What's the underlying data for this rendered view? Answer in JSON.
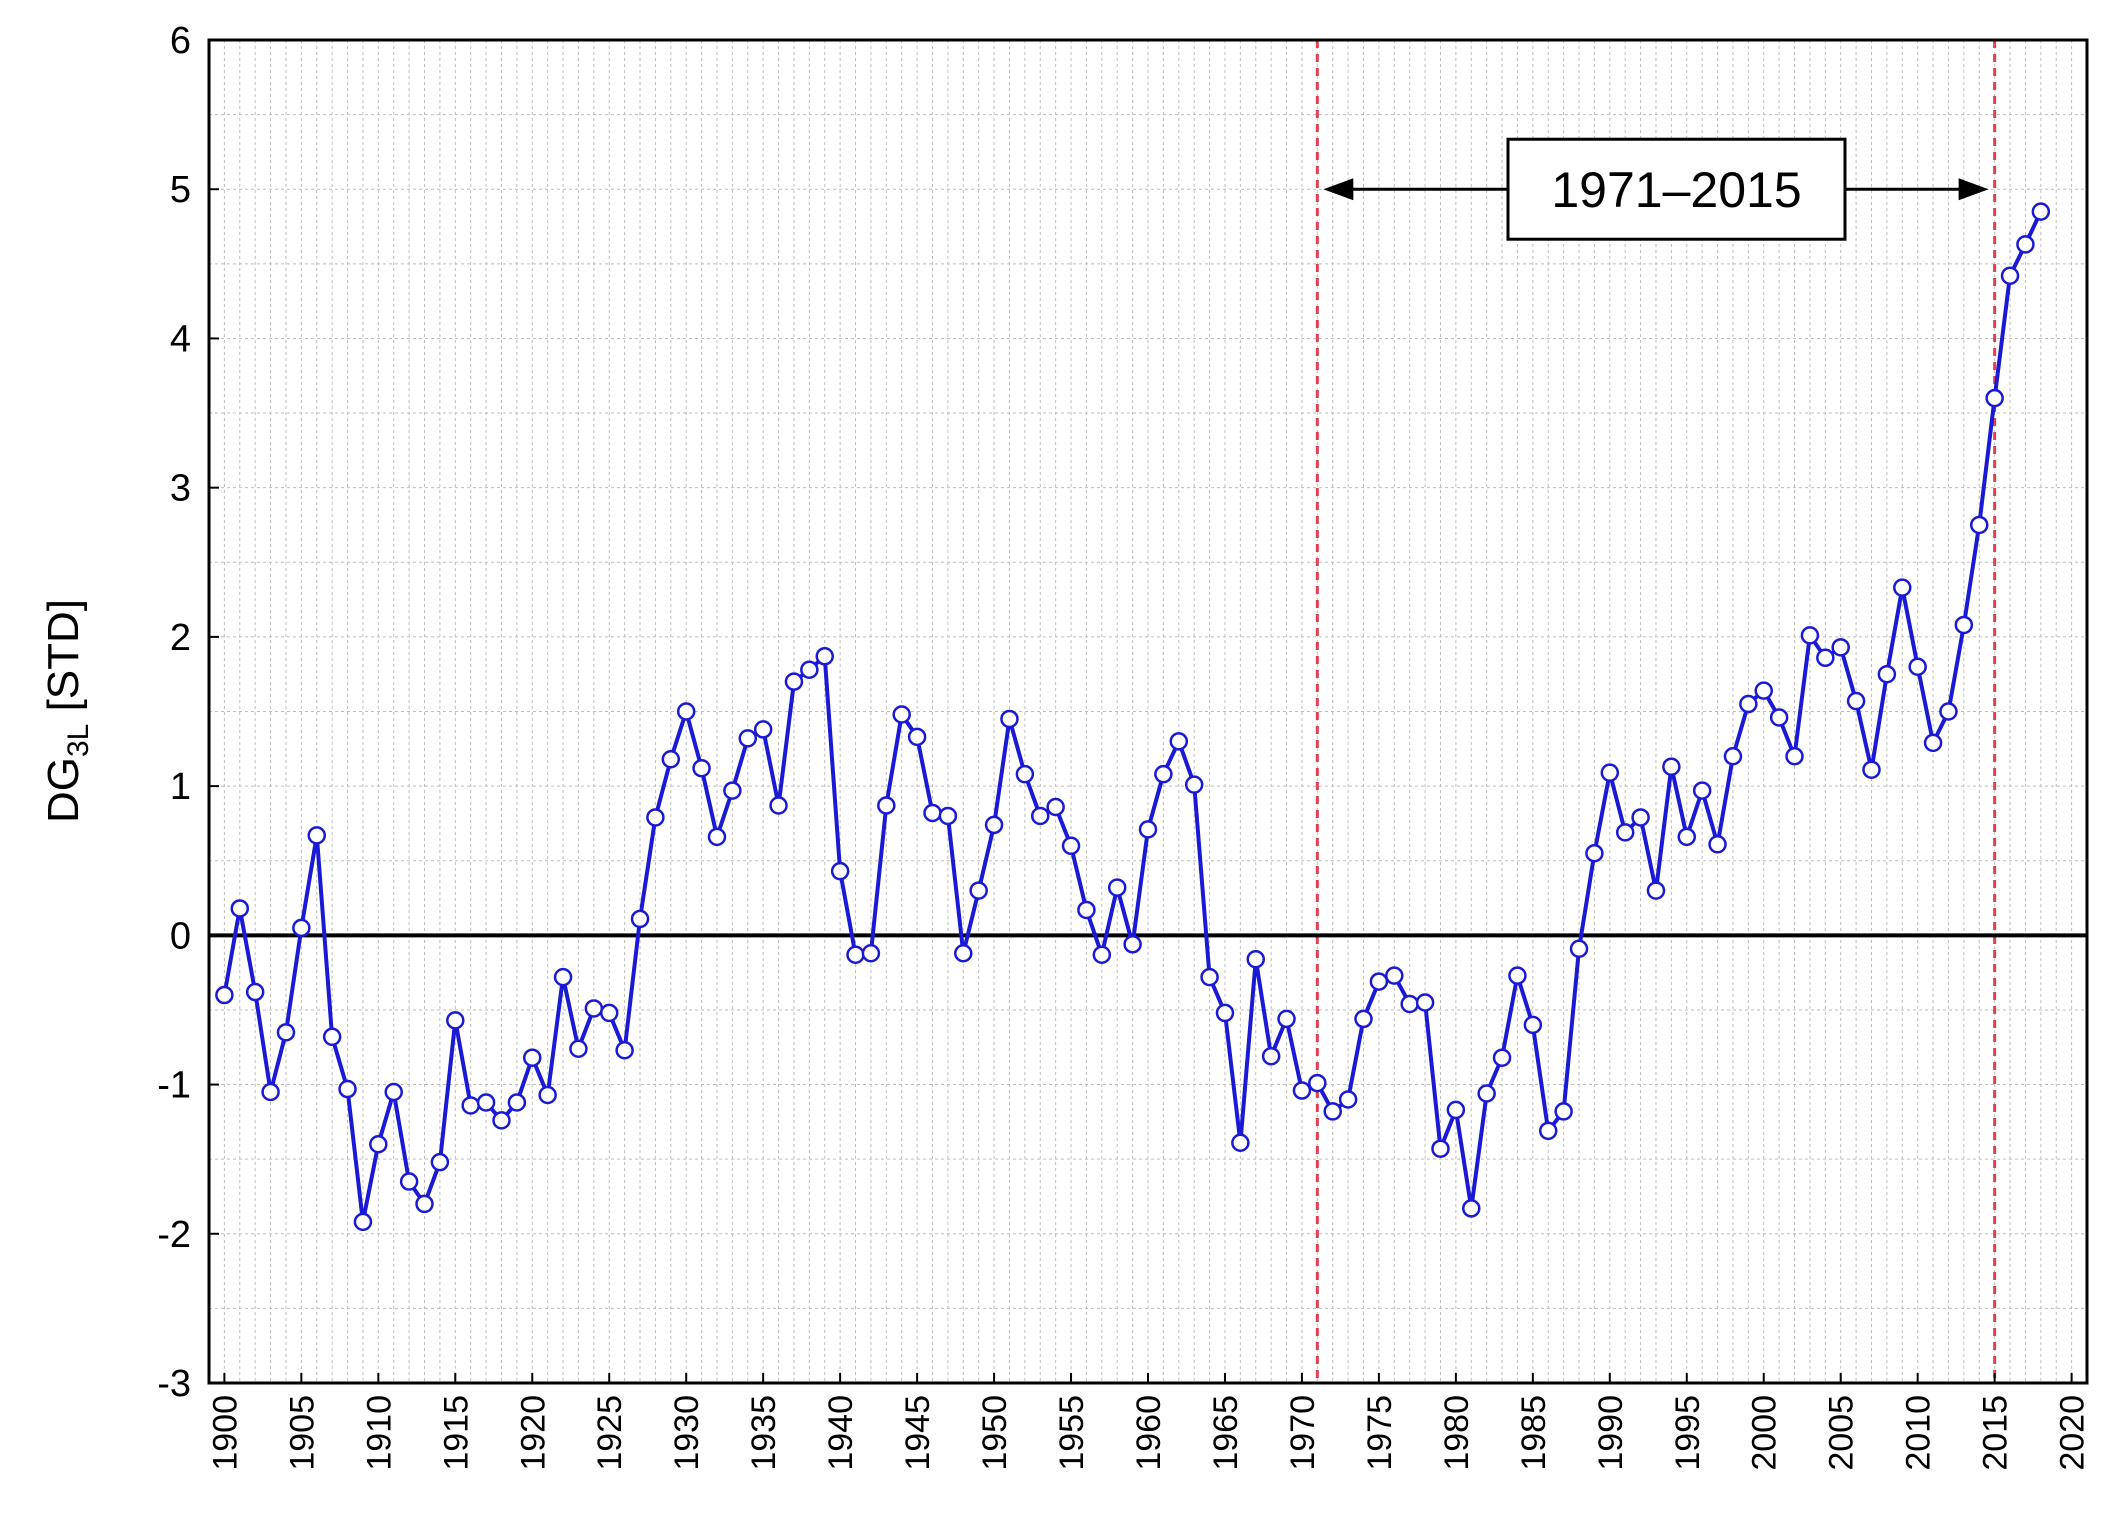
{
  "chart_data": {
    "type": "line",
    "title": "",
    "xlabel": "",
    "ylabel": "DG",
    "ylabel_sub": "3L",
    "ylabel_suffix": " [STD]",
    "xlim": [
      1899,
      2021
    ],
    "ylim": [
      -3,
      6
    ],
    "x_ticks": [
      1900,
      1905,
      1910,
      1915,
      1920,
      1925,
      1930,
      1935,
      1940,
      1945,
      1950,
      1955,
      1960,
      1965,
      1970,
      1975,
      1980,
      1985,
      1990,
      1995,
      2000,
      2005,
      2010,
      2015,
      2020
    ],
    "y_ticks": [
      -3,
      -2,
      -1,
      0,
      1,
      2,
      3,
      4,
      5,
      6
    ],
    "grid": true,
    "zero_line": 0,
    "colors": {
      "series": "#1a1ad6",
      "marker_fill": "#ffffff",
      "reference": "#e04050",
      "zero": "#000000",
      "grid": "#bdbdbd"
    },
    "reference_lines": [
      1971,
      2015
    ],
    "annotation": {
      "text": "1971–2015",
      "from": 1971,
      "to": 2015,
      "y": 5
    },
    "series": [
      {
        "name": "DG3L",
        "x": [
          1900,
          1901,
          1902,
          1903,
          1904,
          1905,
          1906,
          1907,
          1908,
          1909,
          1910,
          1911,
          1912,
          1913,
          1914,
          1915,
          1916,
          1917,
          1918,
          1919,
          1920,
          1921,
          1922,
          1923,
          1924,
          1925,
          1926,
          1927,
          1928,
          1929,
          1930,
          1931,
          1932,
          1933,
          1934,
          1935,
          1936,
          1937,
          1938,
          1939,
          1940,
          1941,
          1942,
          1943,
          1944,
          1945,
          1946,
          1947,
          1948,
          1949,
          1950,
          1951,
          1952,
          1953,
          1954,
          1955,
          1956,
          1957,
          1958,
          1959,
          1960,
          1961,
          1962,
          1963,
          1964,
          1965,
          1966,
          1967,
          1968,
          1969,
          1970,
          1971,
          1972,
          1973,
          1974,
          1975,
          1976,
          1977,
          1978,
          1979,
          1980,
          1981,
          1982,
          1983,
          1984,
          1985,
          1986,
          1987,
          1988,
          1989,
          1990,
          1991,
          1992,
          1993,
          1994,
          1995,
          1996,
          1997,
          1998,
          1999,
          2000,
          2001,
          2002,
          2003,
          2004,
          2005,
          2006,
          2007,
          2008,
          2009,
          2010,
          2011,
          2012,
          2013,
          2014,
          2015,
          2016,
          2017,
          2018
        ],
        "values": [
          -0.4,
          0.18,
          -0.38,
          -1.05,
          -0.65,
          0.05,
          0.67,
          -0.68,
          -1.03,
          -1.92,
          -1.4,
          -1.05,
          -1.65,
          -1.8,
          -1.52,
          -0.57,
          -1.14,
          -1.12,
          -1.24,
          -1.12,
          -0.82,
          -1.07,
          -0.28,
          -0.76,
          -0.49,
          -0.52,
          -0.77,
          0.11,
          0.79,
          1.18,
          1.5,
          1.12,
          0.66,
          0.97,
          1.32,
          1.38,
          0.87,
          1.7,
          1.78,
          1.87,
          0.43,
          -0.13,
          -0.12,
          0.87,
          1.48,
          1.33,
          0.82,
          0.8,
          -0.12,
          0.3,
          0.74,
          1.45,
          1.08,
          0.8,
          0.86,
          0.6,
          0.17,
          -0.13,
          0.32,
          -0.06,
          0.71,
          1.08,
          1.3,
          1.01,
          -0.28,
          -0.52,
          -1.39,
          -0.16,
          -0.81,
          -0.56,
          -1.04,
          -0.99,
          -1.18,
          -1.1,
          -0.56,
          -0.31,
          -0.27,
          -0.46,
          -0.45,
          -1.43,
          -1.17,
          -1.83,
          -1.06,
          -0.82,
          -0.27,
          -0.6,
          -1.31,
          -1.18,
          -0.09,
          0.55,
          1.09,
          0.69,
          0.79,
          0.3,
          1.13,
          0.66,
          0.97,
          0.61,
          1.2,
          1.55,
          1.64,
          1.46,
          1.2,
          2.01,
          1.86,
          1.93,
          1.57,
          1.11,
          1.75,
          2.33,
          1.8,
          1.29,
          1.5,
          2.08,
          2.75,
          3.6,
          4.42,
          4.63,
          4.85
        ]
      }
    ]
  }
}
